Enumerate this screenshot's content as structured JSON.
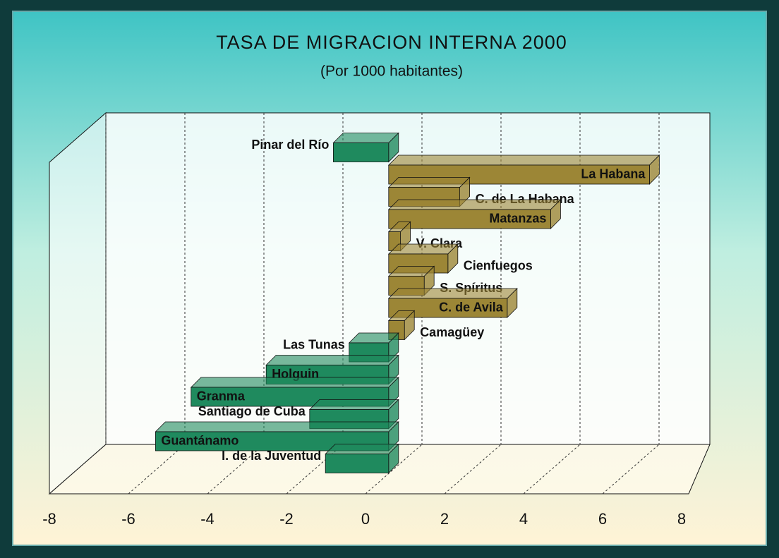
{
  "chart_data": {
    "type": "bar",
    "orientation": "horizontal",
    "title": "TASA DE MIGRACION INTERNA 2000",
    "subtitle": "(Por 1000 habitantes)",
    "categories": [
      "Pinar del Río",
      "La Habana",
      "C. de La Habana",
      "Matanzas",
      "V. Clara",
      "Cienfuegos",
      "S. Spíritus",
      "C. de Avila",
      "Camagüey",
      "Las Tunas",
      "Holguin",
      "Granma",
      "Santiago de Cuba",
      "Guantánamo",
      "I. de la Juventud"
    ],
    "values": [
      -1.4,
      6.6,
      1.8,
      4.1,
      0.3,
      1.5,
      0.9,
      3.0,
      0.4,
      -1.0,
      -3.1,
      -5.0,
      -2.0,
      -5.9,
      -1.6
    ],
    "positive_color": "#9c8636",
    "negative_color": "#1f8a5e",
    "xlim": [
      -8,
      8
    ],
    "xticks": [
      -8,
      -6,
      -4,
      -2,
      0,
      2,
      4,
      6,
      8
    ],
    "grid": true
  }
}
